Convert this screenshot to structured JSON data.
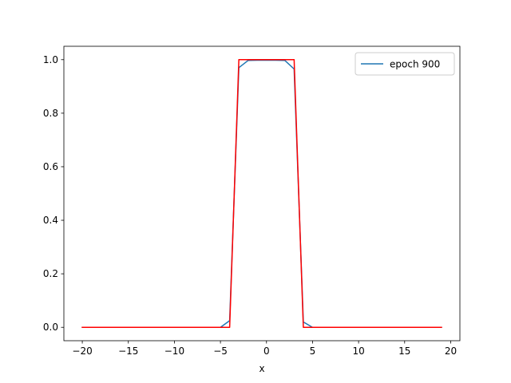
{
  "chart_data": {
    "type": "line",
    "xlabel": "x",
    "ylabel": "",
    "xlim": [
      -22,
      21
    ],
    "ylim": [
      -0.05,
      1.05
    ],
    "xticks": [
      -20,
      -15,
      -10,
      -5,
      0,
      5,
      10,
      15,
      20
    ],
    "xtick_labels": [
      "−20",
      "−15",
      "−10",
      "−5",
      "0",
      "5",
      "10",
      "15",
      "20"
    ],
    "yticks": [
      0.0,
      0.2,
      0.4,
      0.6,
      0.8,
      1.0
    ],
    "ytick_labels": [
      "0.0",
      "0.2",
      "0.4",
      "0.6",
      "0.8",
      "1.0"
    ],
    "grid": false,
    "legend": {
      "position": "top-right",
      "entries": [
        "epoch 900"
      ]
    },
    "series": [
      {
        "name": "epoch 900",
        "color": "#1f77b4",
        "x": [
          -20,
          -19,
          -18,
          -17,
          -16,
          -15,
          -14,
          -13,
          -12,
          -11,
          -10,
          -9,
          -8,
          -7,
          -6,
          -5,
          -4,
          -3,
          -2,
          -1,
          0,
          1,
          2,
          3,
          4,
          5,
          6,
          7,
          8,
          9,
          10,
          11,
          12,
          13,
          14,
          15,
          16,
          17,
          18,
          19
        ],
        "y": [
          0,
          0,
          0,
          0,
          0,
          0,
          0,
          0,
          0,
          0,
          0,
          0,
          0,
          0,
          0,
          0,
          0.025,
          0.97,
          0.997,
          0.998,
          0.998,
          0.998,
          0.997,
          0.965,
          0.02,
          0,
          0,
          0,
          0,
          0,
          0,
          0,
          0,
          0,
          0,
          0,
          0,
          0,
          0,
          0
        ]
      },
      {
        "color": "#ff0000",
        "x": [
          -20,
          -4,
          -3,
          3,
          4,
          19
        ],
        "y": [
          0,
          0,
          1,
          1,
          0,
          0
        ]
      }
    ]
  }
}
